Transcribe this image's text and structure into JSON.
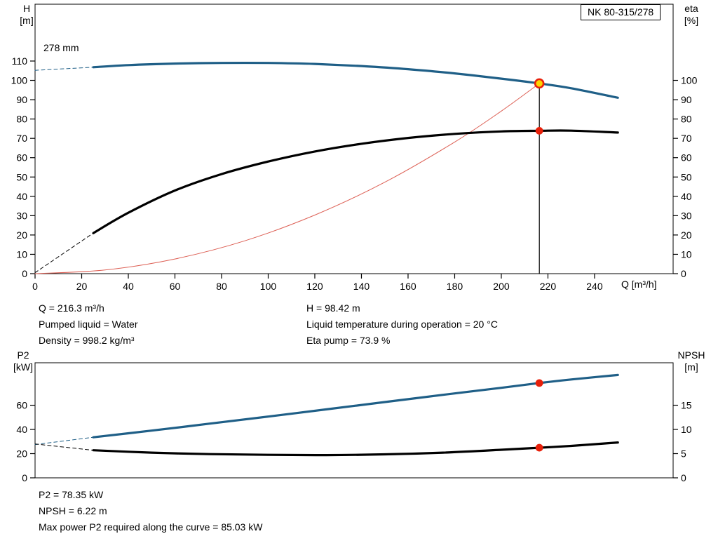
{
  "pump_model": "NK 80-315/278",
  "colors": {
    "curve_blue": "#1f5f87",
    "curve_black": "#000000",
    "affinity_red": "#dd6055",
    "duty_red": "#e8200a",
    "duty_yellow": "#ffd500"
  },
  "readouts": {
    "top": {
      "left": [
        "Q = 216.3 m³/h",
        "Pumped liquid = Water",
        "Density = 998.2 kg/m³"
      ],
      "right": [
        "H = 98.42 m",
        "Liquid temperature during operation = 20 °C",
        "Eta pump = 73.9 %"
      ]
    },
    "bottom": [
      "P2 = 78.35 kW",
      "NPSH = 6.22 m",
      "Max power P2 required along the curve = 85.03 kW"
    ]
  },
  "chart_data": [
    {
      "id": "qh-eta-chart",
      "type": "line",
      "title": "NK 80-315/278",
      "annotation": "278 mm",
      "x_axis": {
        "label": "Q [m³/h]",
        "ticks": [
          0,
          20,
          40,
          60,
          80,
          100,
          120,
          140,
          160,
          180,
          200,
          220,
          240
        ],
        "range": [
          0,
          273.7
        ]
      },
      "left_axis": {
        "label": "H",
        "unit": "[m]",
        "ticks": [
          0,
          10,
          20,
          30,
          40,
          50,
          60,
          70,
          80,
          90,
          100,
          110
        ],
        "range": [
          0,
          139.4
        ]
      },
      "right_axis": {
        "label": "eta",
        "unit": "[%]",
        "ticks": [
          0,
          10,
          20,
          30,
          40,
          50,
          60,
          70,
          80,
          90,
          100
        ],
        "range": [
          0,
          139.4
        ]
      },
      "grid": false,
      "series": [
        {
          "name": "affinity-parabola",
          "axis": "left",
          "color": "#dd6055",
          "width": 1,
          "x": [
            0,
            30,
            60,
            90,
            120,
            150,
            180,
            200,
            216.3
          ],
          "y": [
            0,
            1.9,
            7.6,
            17.0,
            30.3,
            47.3,
            68.1,
            84.1,
            98.42
          ]
        },
        {
          "name": "head-curve-lead-in",
          "axis": "left",
          "color": "#1f5f87",
          "width": 1,
          "dash": true,
          "x": [
            0,
            25
          ],
          "y": [
            105.2,
            106.8
          ]
        },
        {
          "name": "efficiency-curve-lead-in",
          "axis": "right",
          "color": "#000000",
          "width": 1,
          "dash": true,
          "x": [
            0,
            25
          ],
          "y": [
            0.5,
            21
          ]
        },
        {
          "name": "duty-vertical-line",
          "axis": "left",
          "color": "#000000",
          "width": 1.2,
          "x": [
            216.3,
            216.3
          ],
          "y": [
            0,
            98.42
          ]
        },
        {
          "name": "head-curve",
          "axis": "left",
          "color": "#1f5f87",
          "width": 3.2,
          "x": [
            25,
            40,
            60,
            80,
            100,
            120,
            140,
            160,
            180,
            200,
            216.3,
            230,
            250
          ],
          "y": [
            106.8,
            107.9,
            108.7,
            109.0,
            109.0,
            108.5,
            107.4,
            105.8,
            103.6,
            100.9,
            98.42,
            95.9,
            91.0
          ]
        },
        {
          "name": "efficiency-curve",
          "axis": "right",
          "color": "#000000",
          "width": 3.2,
          "x": [
            25,
            40,
            60,
            80,
            100,
            120,
            140,
            160,
            180,
            200,
            216.3,
            230,
            250
          ],
          "y": [
            21,
            31.5,
            43,
            51.5,
            58,
            63.2,
            67.2,
            70.2,
            72.3,
            73.6,
            73.9,
            74.0,
            73.0
          ]
        }
      ],
      "markers": [
        {
          "name": "duty-point-head",
          "x": 216.3,
          "y": 98.42,
          "axis": "left",
          "r": 6,
          "fill": "#ffd500",
          "stroke": "#e8200a",
          "stroke_width": 2.6
        },
        {
          "name": "duty-point-efficiency",
          "x": 216.3,
          "y": 73.9,
          "axis": "right",
          "r": 5.4,
          "fill": "#e8200a"
        }
      ],
      "duty_point": {
        "q": 216.3,
        "h": 98.42,
        "eta": 73.9
      }
    },
    {
      "id": "p2-npsh-chart",
      "type": "line",
      "x_axis": {
        "label": "",
        "ticks": [],
        "range": [
          0,
          273.7
        ]
      },
      "left_axis": {
        "label": "P2",
        "unit": "[kW]",
        "ticks": [
          0,
          20,
          40,
          60
        ],
        "range": [
          0,
          95.1
        ]
      },
      "right_axis": {
        "label": "NPSH",
        "unit": "[m]",
        "ticks": [
          0,
          5,
          10,
          15
        ],
        "range": [
          0,
          23.77
        ]
      },
      "grid": false,
      "series": [
        {
          "name": "p2-curve-lead-in",
          "axis": "left",
          "color": "#1f5f87",
          "width": 1,
          "dash": true,
          "x": [
            0,
            25
          ],
          "y": [
            27.5,
            33.5
          ]
        },
        {
          "name": "npsh-curve-lead-in",
          "axis": "right",
          "color": "#000000",
          "width": 1,
          "dash": true,
          "x": [
            0,
            25
          ],
          "y": [
            7.0,
            5.7
          ]
        },
        {
          "name": "p2-curve",
          "axis": "left",
          "color": "#1f5f87",
          "width": 3.2,
          "x": [
            25,
            50,
            75,
            100,
            125,
            150,
            175,
            200,
            216.3,
            230,
            250
          ],
          "y": [
            33.5,
            39.0,
            44.8,
            50.6,
            56.6,
            62.6,
            68.6,
            74.4,
            78.35,
            81.3,
            85.03
          ]
        },
        {
          "name": "npsh-curve",
          "axis": "right",
          "color": "#000000",
          "width": 3.2,
          "x": [
            25,
            50,
            75,
            100,
            125,
            150,
            175,
            200,
            216.3,
            230,
            250
          ],
          "y": [
            5.7,
            5.2,
            4.9,
            4.75,
            4.7,
            4.85,
            5.2,
            5.8,
            6.22,
            6.6,
            7.3
          ]
        }
      ],
      "markers": [
        {
          "name": "duty-point-p2",
          "x": 216.3,
          "y": 78.35,
          "axis": "left",
          "r": 5.4,
          "fill": "#e8200a"
        },
        {
          "name": "duty-point-npsh",
          "x": 216.3,
          "y": 6.22,
          "axis": "right",
          "r": 5.4,
          "fill": "#e8200a"
        }
      ],
      "duty_point": {
        "q": 216.3,
        "p2_kw": 78.35,
        "npsh_m": 6.22,
        "max_p2_kw": 85.03
      }
    }
  ]
}
